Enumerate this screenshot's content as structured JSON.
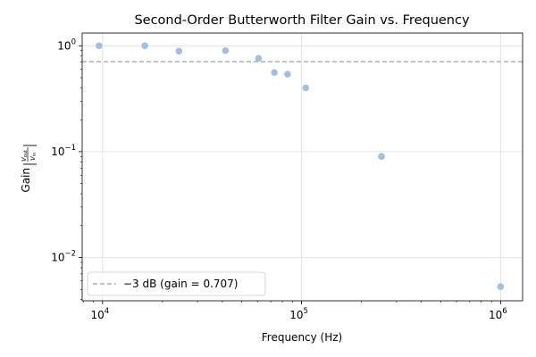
{
  "chart_data": {
    "type": "scatter",
    "title": "Second-Order Butterworth Filter Gain vs. Frequency",
    "xlabel": "Frequency (Hz)",
    "ylabel": "Gain",
    "x_scale": "log",
    "y_scale": "log",
    "xlim": [
      7900,
      1290000
    ],
    "ylim": [
      0.0039,
      1.32
    ],
    "x_ticks": [
      {
        "value": 10000,
        "base": "10",
        "exp": "4"
      },
      {
        "value": 100000,
        "base": "10",
        "exp": "5"
      },
      {
        "value": 1000000,
        "base": "10",
        "exp": "6"
      }
    ],
    "y_ticks": [
      {
        "value": 0.01,
        "base": "10",
        "exp": "−2"
      },
      {
        "value": 0.1,
        "base": "10",
        "exp": "−1"
      },
      {
        "value": 1,
        "base": "10",
        "exp": "0"
      }
    ],
    "grid": true,
    "series": [
      {
        "marker_color": "#a3bfdb",
        "points": [
          {
            "x": 9600,
            "y": 1.0
          },
          {
            "x": 16300,
            "y": 1.0
          },
          {
            "x": 24200,
            "y": 0.89
          },
          {
            "x": 41500,
            "y": 0.9
          },
          {
            "x": 60800,
            "y": 0.76
          },
          {
            "x": 73000,
            "y": 0.56
          },
          {
            "x": 85000,
            "y": 0.54
          },
          {
            "x": 105000,
            "y": 0.4
          },
          {
            "x": 252000,
            "y": 0.09
          },
          {
            "x": 1000000,
            "y": 0.0053
          }
        ]
      }
    ],
    "reference_line": {
      "label": "−3 dB (gain = 0.707)",
      "y": 0.707,
      "color": "#b0b0b0",
      "style": "dashed"
    },
    "legend": {
      "position": "lower-left"
    }
  }
}
